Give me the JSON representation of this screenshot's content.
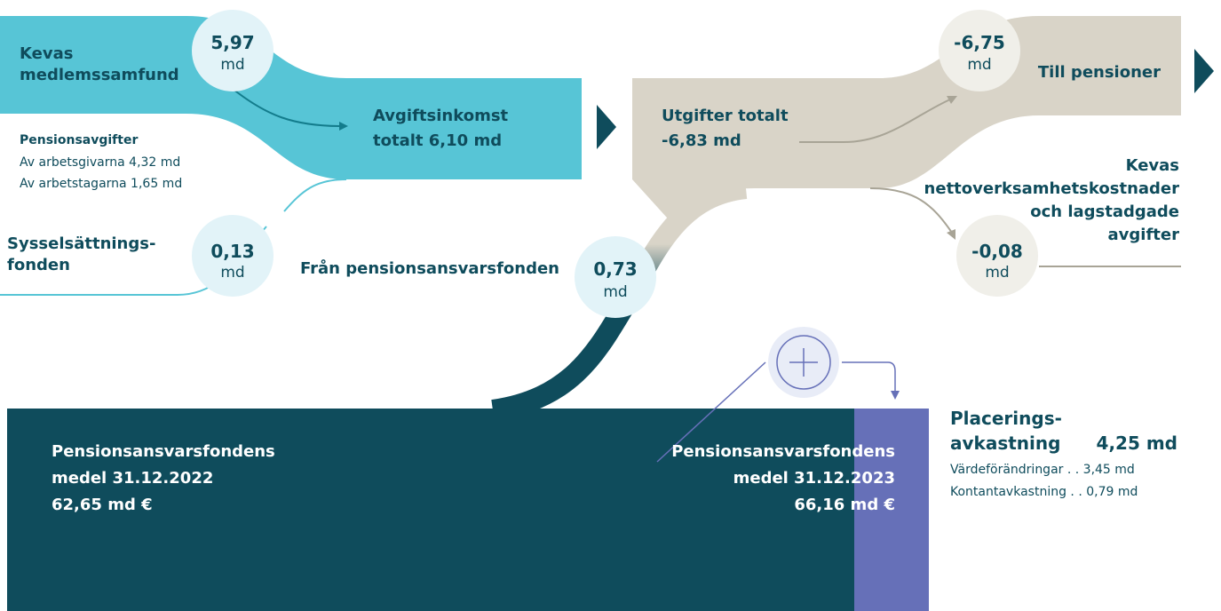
{
  "inflow": {
    "members": {
      "lines": [
        "Kevas",
        "medlemssamfund"
      ],
      "amount": "5,97",
      "unit": "md"
    },
    "contributions": {
      "title": "Pensionsavgifter",
      "lines": [
        "Av arbetsgivarna  4,32 md",
        "Av arbetstagarna 1,65 md"
      ]
    },
    "employment_fund": {
      "lines": [
        "Sysselsättnings-",
        "fonden"
      ],
      "amount": "0,13",
      "unit": "md"
    },
    "total": {
      "lines": [
        "Avgiftsinkomst",
        "totalt 6,10 md"
      ]
    },
    "from_fund": {
      "label": "Från pensionsansvarsfonden",
      "amount": "0,73",
      "unit": "md"
    }
  },
  "outflow": {
    "total": {
      "lines": [
        "Utgifter totalt",
        "-6,83 md"
      ]
    },
    "pensions": {
      "label": "Till pensioner",
      "amount": "-6,75",
      "unit": "md"
    },
    "costs": {
      "lines": [
        "Kevas",
        "nettoverksamhetskostnader",
        "och lagstadgade",
        "avgifter"
      ],
      "amount": "-0,08",
      "unit": "md"
    }
  },
  "fund": {
    "start": {
      "lines": [
        "Pensionsansvarsfondens",
        "medel 31.12.2022",
        "62,65 md €"
      ]
    },
    "end": {
      "lines": [
        "Pensionsansvarsfondens",
        "medel 31.12.2023",
        "66,16 md €"
      ]
    },
    "returns": {
      "lines": [
        "Placerings-",
        "avkastning"
      ],
      "amount": "4,25 md",
      "details": [
        "Värdeförändringar . .  3,45 md",
        "Kontantavkastning  . . 0,79 md"
      ]
    }
  }
}
